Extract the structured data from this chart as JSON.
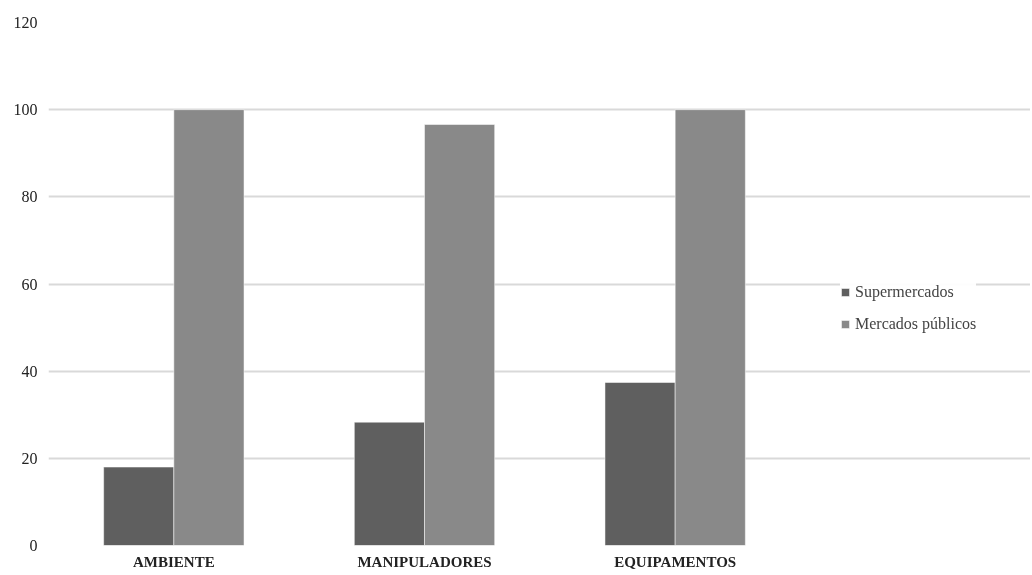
{
  "chart_data": {
    "type": "bar",
    "categories": [
      "AMBIENTE",
      "MANIPULADORES",
      "EQUIPAMENTOS"
    ],
    "series": [
      {
        "name": "Supermercados",
        "color": "#5f5f5f",
        "values": [
          18,
          28.3,
          37.4
        ]
      },
      {
        "name": "Mercados públicos",
        "color": "#898989",
        "values": [
          100,
          96.6,
          100
        ]
      }
    ],
    "ylim": [
      0,
      120
    ],
    "yticks": [
      0,
      20,
      40,
      60,
      80,
      100,
      120
    ],
    "grid": "y",
    "legend": "right"
  }
}
